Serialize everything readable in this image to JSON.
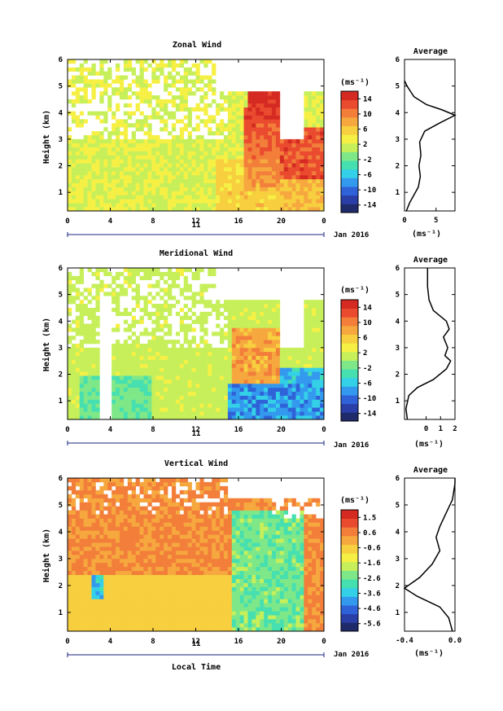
{
  "chart_data": [
    {
      "type": "heatmap",
      "title": "Zonal Wind",
      "ylabel": "Height (km)",
      "xlim": [
        0,
        24
      ],
      "ylim": [
        0.3,
        6
      ],
      "x_ticks": [
        "0",
        "4",
        "8",
        "12",
        "16",
        "20",
        "0"
      ],
      "y_ticks": [
        "1",
        "2",
        "3",
        "4",
        "5",
        "6"
      ],
      "date_day": "11",
      "date_label": "Jan 2016",
      "colorbar": {
        "unit_label": "(ms⁻¹)",
        "tick_labels": [
          "14",
          "10",
          "6",
          "2",
          "-2",
          "-6",
          "-10",
          "-14"
        ],
        "range": [
          -16,
          16
        ]
      },
      "profile": {
        "title": "Average",
        "xlabel": "(ms⁻¹)",
        "x_tick_labels": [
          "0",
          "5"
        ],
        "xlim": [
          0,
          8
        ],
        "ylim": [
          0.3,
          6
        ],
        "y_ticks": [
          "1",
          "2",
          "3",
          "4",
          "5",
          "6"
        ],
        "points": [
          [
            0.3,
            0.3
          ],
          [
            0.8,
            0.6
          ],
          [
            1.5,
            0.9
          ],
          [
            2.2,
            1.2
          ],
          [
            2.5,
            1.6
          ],
          [
            2.3,
            2.0
          ],
          [
            2.6,
            2.4
          ],
          [
            2.4,
            2.9
          ],
          [
            3.2,
            3.3
          ],
          [
            5.5,
            3.6
          ],
          [
            8,
            3.9
          ],
          [
            6,
            4.1
          ],
          [
            3.5,
            4.3
          ],
          [
            1.5,
            4.6
          ],
          [
            0.4,
            5.0
          ],
          [
            0,
            5.2
          ]
        ]
      }
    },
    {
      "type": "heatmap",
      "title": "Meridional Wind",
      "ylabel": "Height (km)",
      "xlim": [
        0,
        24
      ],
      "ylim": [
        0.3,
        6
      ],
      "x_ticks": [
        "0",
        "4",
        "8",
        "12",
        "16",
        "20",
        "0"
      ],
      "y_ticks": [
        "1",
        "2",
        "3",
        "4",
        "5",
        "6"
      ],
      "date_day": "11",
      "date_label": "Jan 2016",
      "colorbar": {
        "unit_label": "(ms⁻¹)",
        "tick_labels": [
          "14",
          "10",
          "6",
          "2",
          "-2",
          "-6",
          "-10",
          "-14"
        ],
        "range": [
          -16,
          16
        ]
      },
      "profile": {
        "title": "Average",
        "xlabel": "(ms⁻¹)",
        "x_tick_labels": [
          "0",
          "1",
          "2"
        ],
        "xlim": [
          -1.5,
          2
        ],
        "ylim": [
          0.3,
          6
        ],
        "y_ticks": [
          "1",
          "2",
          "3",
          "4",
          "5",
          "6"
        ],
        "points": [
          [
            -1.3,
            0.3
          ],
          [
            -1.4,
            0.7
          ],
          [
            -1.2,
            1.2
          ],
          [
            -0.6,
            1.5
          ],
          [
            0.5,
            1.8
          ],
          [
            1.4,
            2.2
          ],
          [
            1.7,
            2.5
          ],
          [
            1.3,
            2.7
          ],
          [
            1.5,
            3.0
          ],
          [
            1.2,
            3.4
          ],
          [
            1.6,
            3.7
          ],
          [
            1.4,
            4.0
          ],
          [
            0.5,
            4.4
          ],
          [
            0.2,
            4.8
          ],
          [
            0.1,
            5.3
          ],
          [
            0.1,
            6.0
          ]
        ]
      }
    },
    {
      "type": "heatmap",
      "title": "Vertical Wind",
      "ylabel": "Height (km)",
      "xlabel": "Local Time",
      "xlim": [
        0,
        24
      ],
      "ylim": [
        0.3,
        6
      ],
      "x_ticks": [
        "0",
        "4",
        "8",
        "12",
        "16",
        "20",
        "0"
      ],
      "y_ticks": [
        "1",
        "2",
        "3",
        "4",
        "5",
        "6"
      ],
      "date_day": "11",
      "date_label": "Jan 2016",
      "colorbar": {
        "unit_label": "(ms⁻¹)",
        "tick_labels": [
          "1.5",
          "0.6",
          "-0.6",
          "-1.6",
          "-2.6",
          "-3.6",
          "-4.6",
          "-5.6"
        ],
        "range": [
          -6,
          2
        ]
      },
      "profile": {
        "title": "Average",
        "xlabel": "(ms⁻¹)",
        "x_tick_labels": [
          "-0.4",
          "0.0"
        ],
        "xlim": [
          -0.4,
          0.0
        ],
        "ylim": [
          0.3,
          6
        ],
        "y_ticks": [
          "1",
          "2",
          "3",
          "4",
          "5",
          "6"
        ],
        "points": [
          [
            -0.02,
            0.3
          ],
          [
            -0.05,
            0.8
          ],
          [
            -0.12,
            1.2
          ],
          [
            -0.3,
            1.6
          ],
          [
            -0.4,
            1.9
          ],
          [
            -0.28,
            2.3
          ],
          [
            -0.18,
            2.8
          ],
          [
            -0.12,
            3.3
          ],
          [
            -0.15,
            3.8
          ],
          [
            -0.12,
            4.2
          ],
          [
            -0.08,
            4.6
          ],
          [
            -0.02,
            5.2
          ],
          [
            0.0,
            5.8
          ],
          [
            0.0,
            6.0
          ]
        ]
      }
    }
  ]
}
